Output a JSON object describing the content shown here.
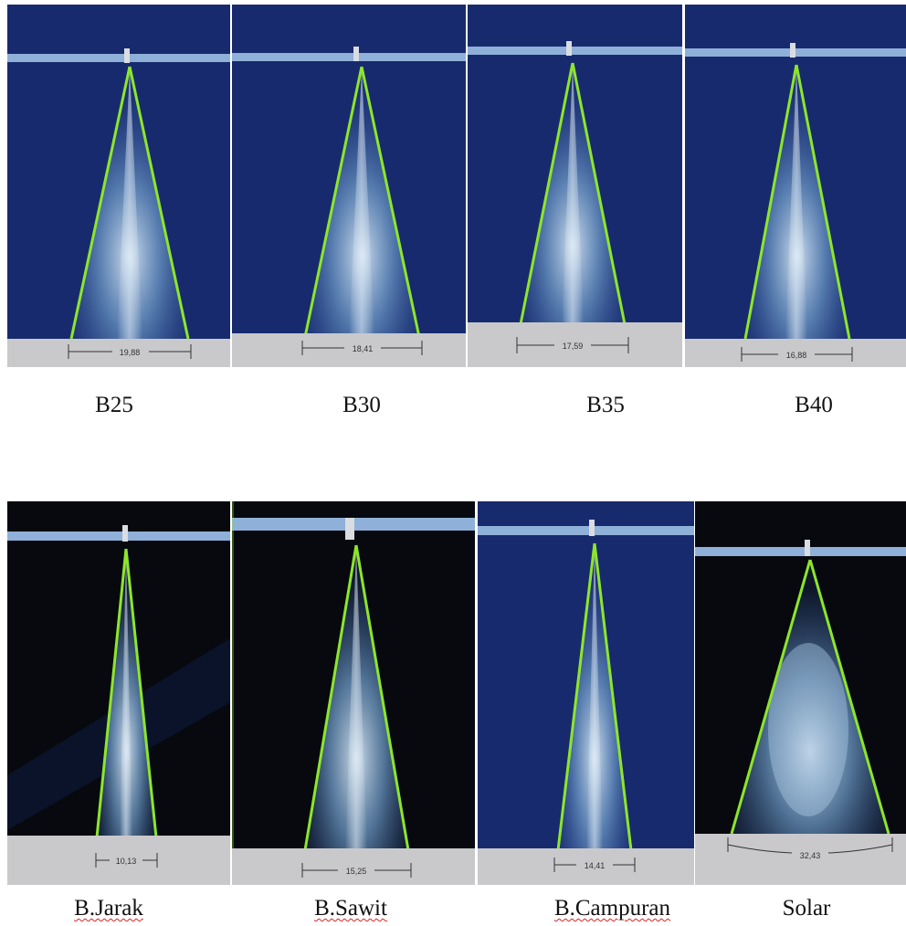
{
  "figure": {
    "panels": [
      {
        "caption": "B25",
        "measurement": "19,88",
        "bg": "blue"
      },
      {
        "caption": "B30",
        "measurement": "18,41",
        "bg": "blue"
      },
      {
        "caption": "B35",
        "measurement": "17,59",
        "bg": "blue"
      },
      {
        "caption": "B40",
        "measurement": "16,88",
        "bg": "blue"
      },
      {
        "caption": "B.Jarak",
        "measurement": "10,13",
        "bg": "black"
      },
      {
        "caption": "B.Sawit",
        "measurement": "15,25",
        "bg": "black"
      },
      {
        "caption": "B.Campuran",
        "measurement": "14,41",
        "bg": "blue"
      },
      {
        "caption": "Solar",
        "measurement": "32,43",
        "bg": "black"
      }
    ],
    "colors": {
      "blue_background": "#182a6e",
      "black_background": "#07090f",
      "cone_outline": "#8de62a",
      "base_strip": "#c9c9cc",
      "spell_underline": "#e02020"
    }
  }
}
